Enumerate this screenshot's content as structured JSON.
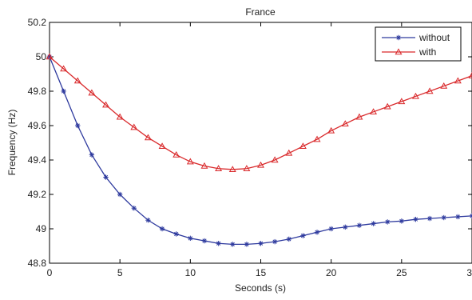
{
  "chart_data": {
    "type": "line",
    "title": "France",
    "xlabel": "Seconds (s)",
    "ylabel": "Frequency (Hz)",
    "xlim": [
      0,
      30
    ],
    "ylim": [
      48.8,
      50.2
    ],
    "xticks": [
      0,
      5,
      10,
      15,
      20,
      25,
      30
    ],
    "yticks": [
      48.8,
      49,
      49.2,
      49.4,
      49.6,
      49.8,
      50,
      50.2
    ],
    "xtick_labels": [
      "0",
      "5",
      "10",
      "15",
      "20",
      "25",
      "30"
    ],
    "ytick_labels": [
      "48.8",
      "49",
      "49.2",
      "49.4",
      "49.6",
      "49.8",
      "50",
      "50.2"
    ],
    "grid": false,
    "legend_position": "top-right",
    "series": [
      {
        "name": "without",
        "color": "#2e3a9e",
        "marker": "asterisk",
        "points": [
          [
            0,
            50.0
          ],
          [
            1,
            49.8
          ],
          [
            2,
            49.6
          ],
          [
            3,
            49.43
          ],
          [
            4,
            49.3
          ],
          [
            5,
            49.2
          ],
          [
            6,
            49.12
          ],
          [
            7,
            49.05
          ],
          [
            8,
            49.0
          ],
          [
            9,
            48.97
          ],
          [
            10,
            48.945
          ],
          [
            11,
            48.93
          ],
          [
            12,
            48.915
          ],
          [
            13,
            48.91
          ],
          [
            14,
            48.91
          ],
          [
            15,
            48.915
          ],
          [
            16,
            48.925
          ],
          [
            17,
            48.94
          ],
          [
            18,
            48.96
          ],
          [
            19,
            48.98
          ],
          [
            20,
            49.0
          ],
          [
            21,
            49.01
          ],
          [
            22,
            49.02
          ],
          [
            23,
            49.03
          ],
          [
            24,
            49.04
          ],
          [
            25,
            49.045
          ],
          [
            26,
            49.055
          ],
          [
            27,
            49.06
          ],
          [
            28,
            49.065
          ],
          [
            29,
            49.07
          ],
          [
            30,
            49.075
          ]
        ]
      },
      {
        "name": "with",
        "color": "#d9292b",
        "marker": "triangle",
        "points": [
          [
            0,
            50.0
          ],
          [
            1,
            49.93
          ],
          [
            2,
            49.86
          ],
          [
            3,
            49.79
          ],
          [
            4,
            49.72
          ],
          [
            5,
            49.65
          ],
          [
            6,
            49.59
          ],
          [
            7,
            49.53
          ],
          [
            8,
            49.48
          ],
          [
            9,
            49.43
          ],
          [
            10,
            49.39
          ],
          [
            11,
            49.365
          ],
          [
            12,
            49.35
          ],
          [
            13,
            49.345
          ],
          [
            14,
            49.35
          ],
          [
            15,
            49.37
          ],
          [
            16,
            49.4
          ],
          [
            17,
            49.44
          ],
          [
            18,
            49.48
          ],
          [
            19,
            49.52
          ],
          [
            20,
            49.57
          ],
          [
            21,
            49.61
          ],
          [
            22,
            49.65
          ],
          [
            23,
            49.68
          ],
          [
            24,
            49.71
          ],
          [
            25,
            49.74
          ],
          [
            26,
            49.77
          ],
          [
            27,
            49.8
          ],
          [
            28,
            49.83
          ],
          [
            29,
            49.86
          ],
          [
            30,
            49.89
          ]
        ]
      }
    ]
  }
}
